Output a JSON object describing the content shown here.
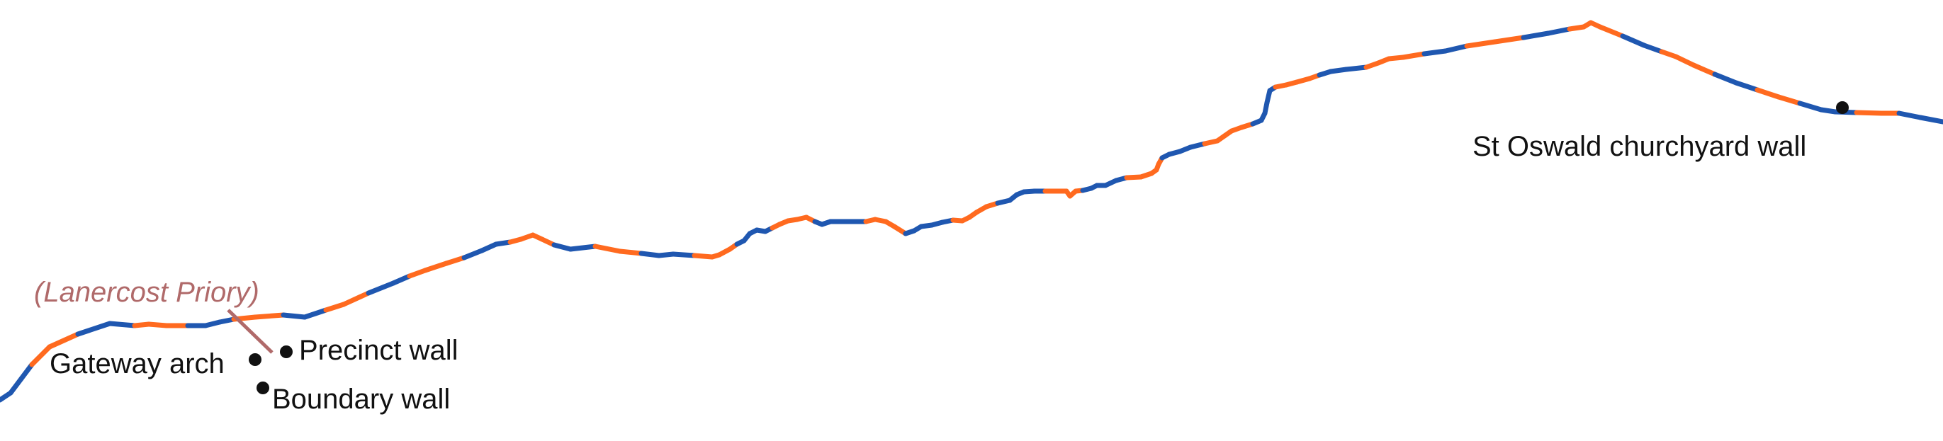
{
  "colors": {
    "route_a": "#1f57b0",
    "route_b": "#ff6a1f",
    "priory_label": "#b06a6a",
    "site_marker": "#111111"
  },
  "labels": {
    "lanercost_priory": "(Lanercost Priory)",
    "gateway_arch": "Gateway arch",
    "precinct_wall": "Precinct wall",
    "boundary_wall": "Boundary wall",
    "st_oswald": "St Oswald churchyard wall"
  }
}
